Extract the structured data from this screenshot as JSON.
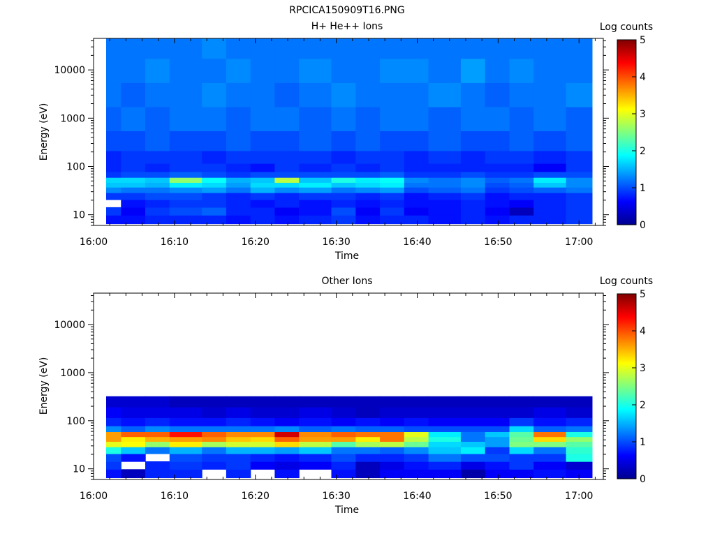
{
  "figure_title": "RPCICA150909T16.PNG",
  "chart_data": [
    {
      "type": "heatmap",
      "title": "H+ He++ Ions",
      "xlabel": "Time",
      "ylabel": "Energy (eV)",
      "yscale": "log",
      "ylim": [
        6,
        45000
      ],
      "xlim": [
        "16:00",
        "17:03"
      ],
      "x_ticks": [
        "16:00",
        "16:10",
        "16:20",
        "16:30",
        "16:40",
        "16:50",
        "17:00"
      ],
      "y_ticks": [
        "10",
        "100",
        "1000",
        "10000"
      ],
      "colorbar": {
        "label": "Log counts",
        "range": [
          0,
          5
        ],
        "ticks": [
          "0",
          "1",
          "2",
          "3",
          "4",
          "5"
        ],
        "colormap": "jet"
      },
      "time_bins": [
        "16:02",
        "16:05",
        "16:08",
        "16:11",
        "16:15",
        "16:18",
        "16:21",
        "16:24",
        "16:27",
        "16:31",
        "16:34",
        "16:37",
        "16:40",
        "16:43",
        "16:47",
        "16:50",
        "16:53",
        "16:56",
        "17:00"
      ],
      "energy_bands": [
        {
          "energy_ev": 8,
          "values": [
            0.7,
            0.7,
            0.8,
            0.8,
            0.8,
            0.7,
            0.8,
            0.7,
            0.8,
            0.9,
            0.7,
            0.8,
            0.8,
            0.7,
            0.8,
            0.7,
            0.8,
            0.8,
            0.9
          ]
        },
        {
          "energy_ev": 12,
          "values": [
            0.9,
            0.6,
            0.9,
            1.0,
            1.1,
            0.8,
            0.8,
            0.6,
            0.7,
            1.0,
            0.6,
            0.9,
            0.6,
            0.7,
            0.8,
            0.6,
            0.3,
            0.8,
            0.9
          ]
        },
        {
          "energy_ev": 17,
          "values": [
            null,
            0.7,
            0.8,
            0.9,
            0.9,
            0.8,
            0.7,
            0.8,
            0.7,
            0.8,
            0.7,
            0.8,
            0.7,
            0.7,
            0.8,
            0.7,
            0.6,
            0.8,
            0.9
          ]
        },
        {
          "energy_ev": 25,
          "values": [
            0.9,
            0.9,
            1.0,
            1.0,
            0.9,
            0.8,
            0.9,
            0.8,
            0.9,
            0.9,
            0.8,
            0.9,
            0.7,
            0.8,
            0.9,
            0.7,
            0.8,
            0.8,
            0.9
          ]
        },
        {
          "energy_ev": 33,
          "values": [
            1.3,
            1.2,
            1.2,
            1.3,
            1.4,
            1.2,
            1.5,
            1.3,
            1.4,
            1.2,
            1.3,
            1.4,
            1.0,
            1.1,
            1.2,
            0.9,
            1.0,
            1.1,
            1.2
          ]
        },
        {
          "energy_ev": 42,
          "values": [
            1.6,
            1.6,
            1.5,
            1.8,
            1.7,
            1.4,
            1.7,
            1.7,
            1.8,
            1.6,
            1.7,
            1.8,
            1.2,
            1.2,
            1.3,
            1.0,
            1.1,
            1.6,
            1.3
          ]
        },
        {
          "energy_ev": 52,
          "values": [
            1.7,
            1.7,
            1.6,
            2.6,
            1.9,
            1.5,
            1.6,
            2.8,
            1.6,
            2.0,
            1.8,
            1.9,
            1.3,
            1.2,
            1.3,
            1.1,
            1.2,
            1.8,
            1.3
          ]
        },
        {
          "energy_ev": 68,
          "values": [
            0.9,
            1.0,
            1.0,
            1.1,
            1.0,
            0.9,
            1.0,
            1.0,
            1.0,
            1.0,
            1.0,
            1.1,
            0.9,
            0.9,
            1.0,
            0.9,
            0.9,
            1.0,
            1.0
          ]
        },
        {
          "energy_ev": 90,
          "values": [
            0.8,
            0.9,
            0.8,
            0.9,
            0.9,
            0.8,
            0.7,
            0.9,
            0.8,
            0.9,
            0.8,
            0.9,
            0.8,
            0.8,
            0.8,
            0.8,
            0.8,
            0.6,
            0.9
          ]
        },
        {
          "energy_ev": 150,
          "values": [
            0.8,
            0.9,
            0.9,
            0.9,
            0.8,
            0.9,
            0.9,
            0.9,
            0.9,
            0.8,
            0.9,
            0.9,
            0.8,
            0.9,
            0.8,
            0.9,
            0.9,
            0.8,
            0.9
          ]
        },
        {
          "energy_ev": 300,
          "values": [
            1.0,
            1.0,
            1.1,
            1.0,
            1.0,
            1.1,
            1.0,
            1.0,
            1.1,
            1.0,
            1.1,
            1.0,
            1.0,
            1.1,
            1.0,
            1.0,
            1.1,
            1.0,
            1.1
          ]
        },
        {
          "energy_ev": 1000,
          "values": [
            1.1,
            1.2,
            1.1,
            1.2,
            1.2,
            1.1,
            1.2,
            1.2,
            1.1,
            1.2,
            1.1,
            1.2,
            1.2,
            1.1,
            1.2,
            1.2,
            1.1,
            1.2,
            1.1
          ]
        },
        {
          "energy_ev": 3000,
          "values": [
            1.2,
            1.1,
            1.2,
            1.2,
            1.3,
            1.2,
            1.2,
            1.1,
            1.2,
            1.3,
            1.2,
            1.2,
            1.2,
            1.3,
            1.2,
            1.1,
            1.2,
            1.2,
            1.3
          ]
        },
        {
          "energy_ev": 10000,
          "values": [
            1.2,
            1.2,
            1.3,
            1.2,
            1.2,
            1.3,
            1.2,
            1.2,
            1.3,
            1.2,
            1.2,
            1.3,
            1.3,
            1.2,
            1.4,
            1.2,
            1.3,
            1.2,
            1.2
          ]
        },
        {
          "energy_ev": 30000,
          "values": [
            1.2,
            1.2,
            1.2,
            1.2,
            1.3,
            1.2,
            1.2,
            1.2,
            1.2,
            1.2,
            1.2,
            1.2,
            1.2,
            1.2,
            1.2,
            1.2,
            1.2,
            1.2,
            1.2
          ]
        }
      ]
    },
    {
      "type": "heatmap",
      "title": "Other Ions",
      "xlabel": "Time",
      "ylabel": "Energy (eV)",
      "yscale": "log",
      "ylim": [
        6,
        45000
      ],
      "xlim": [
        "16:00",
        "17:03"
      ],
      "x_ticks": [
        "16:00",
        "16:10",
        "16:20",
        "16:30",
        "16:40",
        "16:50",
        "17:00"
      ],
      "y_ticks": [
        "10",
        "100",
        "1000",
        "10000"
      ],
      "colorbar": {
        "label": "Log counts",
        "range": [
          0,
          5
        ],
        "ticks": [
          "0",
          "1",
          "2",
          "3",
          "4",
          "5"
        ],
        "colormap": "jet"
      },
      "time_bins": [
        "16:02",
        "16:05",
        "16:08",
        "16:11",
        "16:15",
        "16:18",
        "16:21",
        "16:24",
        "16:27",
        "16:31",
        "16:34",
        "16:37",
        "16:40",
        "16:43",
        "16:47",
        "16:50",
        "16:53",
        "16:56",
        "17:00"
      ],
      "energy_bands": [
        {
          "energy_ev": 8,
          "values": [
            0.7,
            0.3,
            0.8,
            0.8,
            null,
            0.8,
            null,
            0.7,
            null,
            0.7,
            0.3,
            0.6,
            0.6,
            0.6,
            0.2,
            0.6,
            0.6,
            0.7,
            0.6
          ]
        },
        {
          "energy_ev": 12,
          "values": [
            0.9,
            null,
            0.8,
            0.9,
            0.8,
            0.9,
            0.6,
            0.5,
            0.6,
            0.8,
            0.3,
            0.5,
            0.7,
            0.8,
            0.5,
            0.7,
            0.9,
            0.6,
            0.4
          ]
        },
        {
          "energy_ev": 17,
          "values": [
            1.0,
            0.7,
            null,
            1.0,
            0.9,
            0.9,
            0.8,
            0.7,
            0.8,
            1.0,
            0.8,
            0.8,
            0.9,
            1.2,
            1.0,
            1.0,
            0.9,
            0.9,
            2.0
          ]
        },
        {
          "energy_ev": 25,
          "values": [
            2.0,
            1.6,
            1.2,
            1.5,
            1.2,
            1.5,
            1.5,
            1.4,
            1.6,
            1.2,
            1.2,
            1.1,
            1.3,
            1.6,
            1.8,
            0.9,
            1.7,
            1.2,
            2.1
          ]
        },
        {
          "energy_ev": 33,
          "values": [
            3.0,
            3.1,
            2.6,
            3.2,
            2.7,
            2.9,
            2.9,
            3.3,
            2.8,
            2.3,
            2.7,
            2.8,
            2.4,
            1.7,
            1.6,
            1.4,
            2.5,
            2.5,
            2.3
          ]
        },
        {
          "energy_ev": 42,
          "values": [
            3.6,
            3.2,
            3.5,
            3.6,
            3.7,
            3.4,
            3.3,
            3.9,
            3.6,
            3.6,
            3.2,
            3.8,
            2.8,
            2.0,
            1.2,
            1.4,
            2.4,
            3.3,
            2.6
          ]
        },
        {
          "energy_ev": 52,
          "values": [
            3.6,
            3.9,
            3.9,
            4.3,
            3.9,
            3.7,
            3.7,
            4.6,
            3.7,
            3.9,
            3.8,
            3.8,
            3.0,
            1.8,
            1.2,
            1.6,
            2.3,
            3.8,
            2.0
          ]
        },
        {
          "energy_ev": 68,
          "values": [
            1.3,
            1.1,
            1.3,
            1.2,
            1.2,
            1.2,
            1.2,
            1.3,
            1.1,
            1.2,
            1.1,
            1.1,
            1.0,
            1.0,
            1.0,
            1.0,
            1.7,
            1.1,
            1.2
          ]
        },
        {
          "energy_ev": 90,
          "values": [
            0.8,
            0.7,
            0.8,
            0.7,
            0.7,
            0.8,
            0.7,
            0.6,
            0.7,
            0.6,
            0.7,
            0.6,
            0.7,
            0.6,
            0.6,
            0.6,
            0.9,
            0.7,
            0.8
          ]
        },
        {
          "energy_ev": 150,
          "values": [
            0.6,
            0.5,
            0.5,
            0.5,
            0.4,
            0.5,
            0.4,
            0.4,
            0.5,
            0.4,
            0.3,
            0.4,
            0.4,
            0.4,
            0.4,
            0.4,
            0.4,
            0.5,
            0.4
          ]
        },
        {
          "energy_ev": 250,
          "values": [
            0.4,
            0.4,
            0.4,
            0.3,
            0.3,
            0.3,
            0.3,
            0.3,
            0.3,
            0.3,
            0.3,
            0.3,
            0.3,
            0.3,
            0.3,
            0.3,
            0.3,
            0.3,
            0.3
          ]
        }
      ]
    }
  ]
}
